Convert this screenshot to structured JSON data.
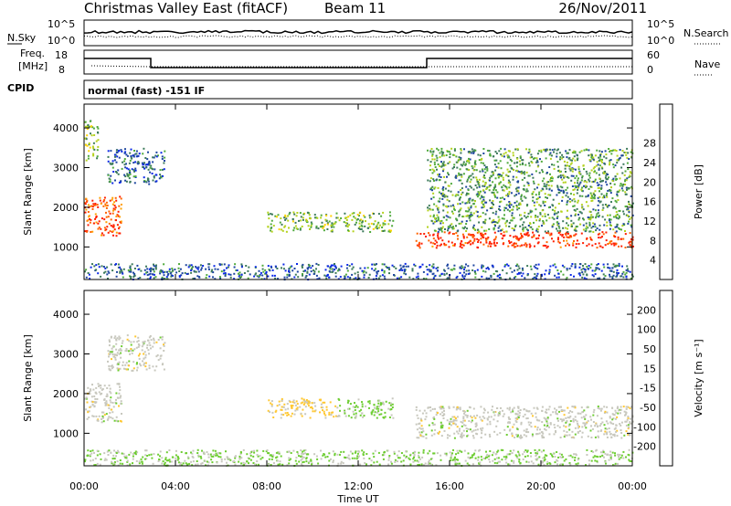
{
  "header": {
    "title": "Christmas Valley East (fitACF)",
    "beam": "Beam 11",
    "date": "26/Nov/2011"
  },
  "strips": {
    "nsky_label": "N.Sky",
    "nsearch_label": "N.Search",
    "nsky_ticks": [
      "10^5",
      "10^0"
    ],
    "freq_label": "Freq.",
    "freq_unit": "[MHz]",
    "freq_ticks": [
      "18",
      "8"
    ],
    "nave_label": "Nave",
    "nave_ticks": [
      "60",
      "0"
    ],
    "cpid_label": "CPID",
    "cpid_text": "normal (fast) -151 IF"
  },
  "chart_data": [
    {
      "type": "heatmap",
      "name": "power",
      "ylabel": "Slant Range [km]",
      "xlabel": "",
      "xlim": [
        0,
        24
      ],
      "ylim": [
        180,
        4600
      ],
      "xticks": [
        "00:00",
        "04:00",
        "08:00",
        "12:00",
        "16:00",
        "20:00",
        "00:00"
      ],
      "yticks": [
        1000,
        2000,
        3000,
        4000
      ],
      "colorbar": {
        "label": "Power [dB]",
        "ticks": [
          4,
          8,
          12,
          16,
          20,
          24,
          28
        ],
        "colors": [
          "#0a28e6",
          "#1e46a0",
          "#3c7a5a",
          "#50aa3c",
          "#b4d21e",
          "#ffd200",
          "#ffa000",
          "#ff6400",
          "#ff1e00"
        ]
      },
      "regions": [
        {
          "x": [
            0.0,
            1.6
          ],
          "y": [
            1300,
            2300
          ],
          "value": 26
        },
        {
          "x": [
            0.0,
            0.6
          ],
          "y": [
            3200,
            4200
          ],
          "value": 14
        },
        {
          "x": [
            1.0,
            3.5
          ],
          "y": [
            2600,
            3500
          ],
          "value": 8
        },
        {
          "x": [
            8.0,
            13.5
          ],
          "y": [
            1400,
            1900
          ],
          "value": 14
        },
        {
          "x": [
            14.5,
            24.0
          ],
          "y": [
            1000,
            1400
          ],
          "value": 28
        },
        {
          "x": [
            15.0,
            24.0
          ],
          "y": [
            1400,
            3500
          ],
          "value": 12
        },
        {
          "x": [
            0.0,
            24.0
          ],
          "y": [
            200,
            600
          ],
          "value": 8
        }
      ]
    },
    {
      "type": "heatmap",
      "name": "velocity",
      "ylabel": "Slant Range [km]",
      "xlabel": "Time UT",
      "xlim": [
        0,
        24
      ],
      "ylim": [
        180,
        4600
      ],
      "xticks": [
        "00:00",
        "04:00",
        "08:00",
        "12:00",
        "16:00",
        "20:00",
        "00:00"
      ],
      "yticks": [
        1000,
        2000,
        3000,
        4000
      ],
      "colorbar": {
        "label": "Velocity [m s⁻¹]",
        "ticks": [
          200,
          100,
          50,
          15,
          -15,
          -50,
          -100,
          -200
        ],
        "colors": [
          "#1e32d2",
          "#2878b4",
          "#3c9650",
          "#6ecd32",
          "#c8c8be",
          "#ffc832",
          "#ff9600",
          "#ff5000",
          "#f00000"
        ]
      },
      "regions": [
        {
          "x": [
            0.0,
            1.6
          ],
          "y": [
            1300,
            2300
          ],
          "value": 0
        },
        {
          "x": [
            1.0,
            3.5
          ],
          "y": [
            2600,
            3500
          ],
          "value": 0
        },
        {
          "x": [
            8.0,
            11.0
          ],
          "y": [
            1400,
            1900
          ],
          "value": 30
        },
        {
          "x": [
            11.0,
            13.5
          ],
          "y": [
            1400,
            1900
          ],
          "value": -40
        },
        {
          "x": [
            14.5,
            24.0
          ],
          "y": [
            900,
            1700
          ],
          "value": 0
        },
        {
          "x": [
            0.0,
            24.0
          ],
          "y": [
            200,
            600
          ],
          "value": -30
        }
      ]
    }
  ]
}
